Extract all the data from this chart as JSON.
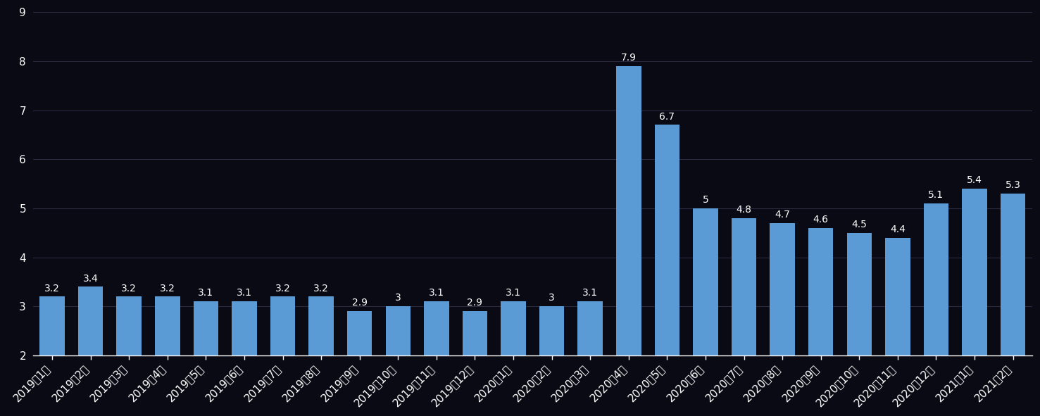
{
  "categories": [
    "2019年1月",
    "2019年2月",
    "2019年3月",
    "2019年4月",
    "2019年5月",
    "2019年6月",
    "2019年7月",
    "2019年8月",
    "2019年9月",
    "2019年10月",
    "2019年11月",
    "2019年12月",
    "2020年1月",
    "2020年2月",
    "2020年3月",
    "2020年4月",
    "2020年5月",
    "2020年6月",
    "2020年7月",
    "2020年8月",
    "2020年9月",
    "2020年10月",
    "2020年11月",
    "2020年12月",
    "2021年1月",
    "2021年2月"
  ],
  "values": [
    3.2,
    3.4,
    3.2,
    3.2,
    3.1,
    3.1,
    3.2,
    3.2,
    2.9,
    3.0,
    3.1,
    2.9,
    3.1,
    3.0,
    3.1,
    7.9,
    6.7,
    5.0,
    4.8,
    4.7,
    4.6,
    4.5,
    4.4,
    5.1,
    5.4,
    5.3
  ],
  "value_labels": [
    "3.2",
    "3.4",
    "3.2",
    "3.2",
    "3.1",
    "3.1",
    "3.2",
    "3.2",
    "2.9",
    "3",
    "3.1",
    "2.9",
    "3.1",
    "3",
    "3.1",
    "7.9",
    "6.7",
    "5",
    "4.8",
    "4.7",
    "4.6",
    "4.5",
    "4.4",
    "5.1",
    "5.4",
    "5.3"
  ],
  "bar_color": "#5B9BD5",
  "background_color": "#0a0a14",
  "text_color": "#FFFFFF",
  "grid_color": "#2a2a40",
  "ymin": 2,
  "ymax": 9,
  "yticks": [
    2,
    3,
    4,
    5,
    6,
    7,
    8,
    9
  ],
  "tick_fontsize": 11,
  "value_fontsize": 10
}
